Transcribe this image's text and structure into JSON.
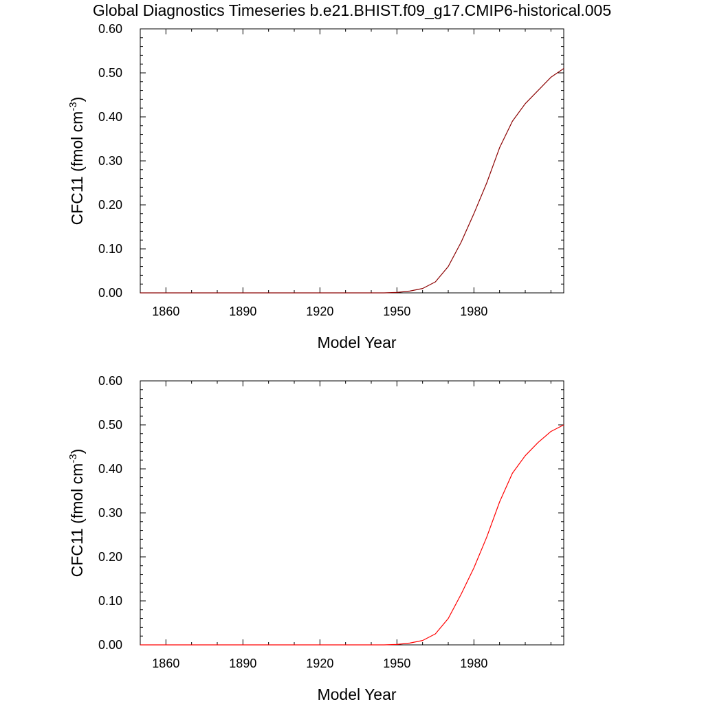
{
  "title": "Global Diagnostics Timeseries b.e21.BHIST.f09_g17.CMIP6-historical.005",
  "colors": {
    "line_top": "#8b0000",
    "line_bottom": "#ff0000",
    "axis": "#000000"
  },
  "chart_data": [
    {
      "type": "line",
      "xlabel": "Model Year",
      "ylabel": "CFC11 (fmol cm",
      "ylabel_sup": "-3",
      "ylabel_close": ")",
      "xlim": [
        1850,
        2015
      ],
      "ylim": [
        0,
        0.6
      ],
      "xticks": [
        1860,
        1890,
        1920,
        1950,
        1980
      ],
      "xticklabels": [
        "1860",
        "1890",
        "1920",
        "1950",
        "1980"
      ],
      "yticks": [
        0,
        0.1,
        0.2,
        0.3,
        0.4,
        0.5,
        0.6
      ],
      "yticklabels": [
        "0.00",
        "0.10",
        "0.20",
        "0.30",
        "0.40",
        "0.50",
        "0.60"
      ],
      "series": [
        {
          "name": "CFC11",
          "x": [
            1850,
            1900,
            1945,
            1950,
            1955,
            1960,
            1965,
            1970,
            1975,
            1980,
            1985,
            1990,
            1995,
            2000,
            2005,
            2010,
            2015
          ],
          "y": [
            0,
            0,
            0,
            0.001,
            0.004,
            0.01,
            0.025,
            0.06,
            0.115,
            0.18,
            0.25,
            0.33,
            0.39,
            0.43,
            0.46,
            0.49,
            0.51
          ]
        }
      ]
    },
    {
      "type": "line",
      "xlabel": "Model Year",
      "ylabel": "CFC11 (fmol cm",
      "ylabel_sup": "-3",
      "ylabel_close": ")",
      "xlim": [
        1850,
        2015
      ],
      "ylim": [
        0,
        0.6
      ],
      "xticks": [
        1860,
        1890,
        1920,
        1950,
        1980
      ],
      "xticklabels": [
        "1860",
        "1890",
        "1920",
        "1950",
        "1980"
      ],
      "yticks": [
        0,
        0.1,
        0.2,
        0.3,
        0.4,
        0.5,
        0.6
      ],
      "yticklabels": [
        "0.00",
        "0.10",
        "0.20",
        "0.30",
        "0.40",
        "0.50",
        "0.60"
      ],
      "series": [
        {
          "name": "CFC11",
          "x": [
            1850,
            1900,
            1945,
            1950,
            1955,
            1960,
            1965,
            1970,
            1975,
            1980,
            1985,
            1990,
            1995,
            2000,
            2005,
            2010,
            2015
          ],
          "y": [
            0,
            0,
            0,
            0.001,
            0.004,
            0.01,
            0.025,
            0.06,
            0.115,
            0.175,
            0.245,
            0.325,
            0.39,
            0.43,
            0.46,
            0.485,
            0.5
          ]
        }
      ]
    }
  ]
}
